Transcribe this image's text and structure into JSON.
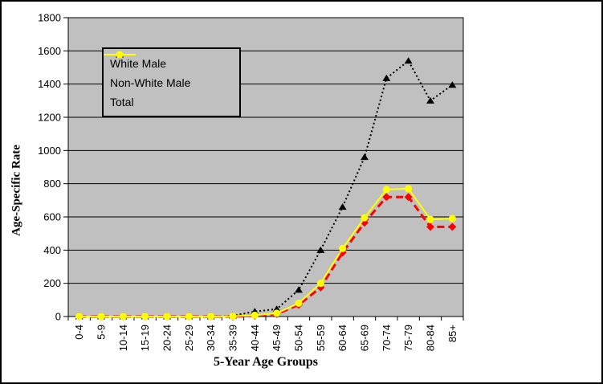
{
  "chart_data": {
    "type": "line",
    "title": "",
    "xlabel": "5-Year Age Groups",
    "ylabel": "Age-Specific Rate",
    "ylim": [
      0,
      1800
    ],
    "ytick_step": 200,
    "yticks": [
      0,
      200,
      400,
      600,
      800,
      1000,
      1200,
      1400,
      1600,
      1800
    ],
    "grid": true,
    "plot_bg": "#c0c0c0",
    "axis_color": "#000000",
    "legend_position": "top-left",
    "categories": [
      "0-4",
      "5-9",
      "10-14",
      "15-19",
      "20-24",
      "25-29",
      "30-34",
      "35-39",
      "40-44",
      "45-49",
      "50-54",
      "55-59",
      "60-64",
      "65-69",
      "70-74",
      "75-79",
      "80-84",
      "85+"
    ],
    "series": [
      {
        "name": "White Male",
        "color": "#ff0000",
        "marker": "diamond",
        "line_style": "dashed",
        "values": [
          0,
          0,
          0,
          0,
          0,
          0,
          0,
          0,
          5,
          15,
          70,
          175,
          385,
          565,
          720,
          720,
          540,
          540
        ]
      },
      {
        "name": "Non-White Male",
        "color": "#000000",
        "marker": "triangle",
        "line_style": "dotted",
        "values": [
          0,
          0,
          0,
          0,
          0,
          0,
          0,
          5,
          30,
          45,
          160,
          400,
          660,
          960,
          1435,
          1540,
          1300,
          1395
        ]
      },
      {
        "name": "Total",
        "color": "#ffff00",
        "marker": "circle",
        "line_style": "solid",
        "values": [
          0,
          0,
          0,
          0,
          0,
          0,
          0,
          2,
          8,
          20,
          80,
          200,
          410,
          595,
          765,
          770,
          585,
          590
        ]
      }
    ]
  }
}
